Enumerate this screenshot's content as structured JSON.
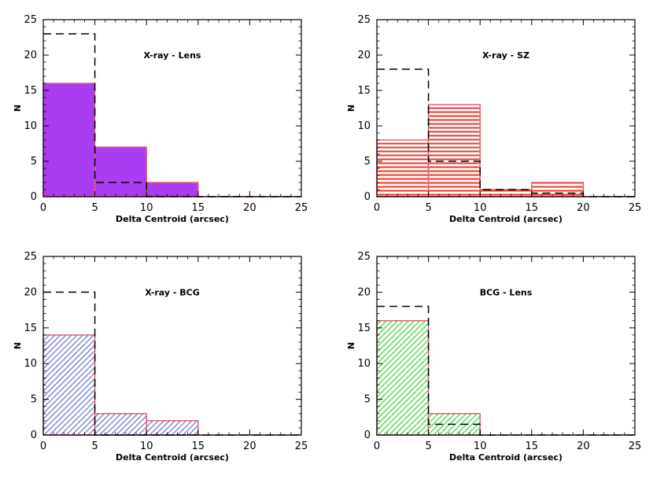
{
  "chart_data": [
    {
      "type": "bar",
      "annotation": "X-ray - Lens",
      "xlabel": "Delta Centroid (arcsec)",
      "ylabel": "N",
      "xlim": [
        0,
        25
      ],
      "ylim": [
        0,
        25
      ],
      "xticks": [
        "0",
        "5",
        "10",
        "15",
        "20",
        "25"
      ],
      "yticks": [
        "0",
        "5",
        "10",
        "15",
        "20",
        "25"
      ],
      "bin_edges": [
        0,
        5,
        10,
        15,
        20,
        25
      ],
      "values": [
        16,
        7,
        2,
        0,
        0
      ],
      "comparison_values": [
        23,
        2,
        0,
        0,
        0
      ],
      "fill_color": "#aa3cf2",
      "fill_style": "solid",
      "edge_color": "#e06070"
    },
    {
      "type": "bar",
      "annotation": "X-ray - SZ",
      "xlabel": "Delta Centroid (arcsec)",
      "ylabel": "N",
      "xlim": [
        0,
        25
      ],
      "ylim": [
        0,
        25
      ],
      "xticks": [
        "0",
        "5",
        "10",
        "15",
        "20",
        "25"
      ],
      "yticks": [
        "0",
        "5",
        "10",
        "15",
        "20",
        "25"
      ],
      "bin_edges": [
        0,
        5,
        10,
        15,
        20,
        25
      ],
      "values": [
        8,
        13,
        1,
        2,
        0
      ],
      "comparison_values": [
        18,
        5,
        1,
        0.5,
        0
      ],
      "fill_color": "#e8392e",
      "fill_style": "horizontal-lines",
      "edge_color": "#e06070"
    },
    {
      "type": "bar",
      "annotation": "X-ray - BCG",
      "xlabel": "Delta Centroid (arcsec)",
      "ylabel": "N",
      "xlim": [
        0,
        25
      ],
      "ylim": [
        0,
        25
      ],
      "xticks": [
        "0",
        "5",
        "10",
        "15",
        "20",
        "25"
      ],
      "yticks": [
        "0",
        "5",
        "10",
        "15",
        "20",
        "25"
      ],
      "bin_edges": [
        0,
        5,
        10,
        15,
        20,
        25
      ],
      "values": [
        14,
        3,
        2,
        0,
        0
      ],
      "comparison_values": [
        20,
        0,
        0,
        0,
        0
      ],
      "fill_color": "#4a55cc",
      "fill_style": "diagonal-lines",
      "edge_color": "#e06070"
    },
    {
      "type": "bar",
      "annotation": "BCG - Lens",
      "xlabel": "Delta Centroid (arcsec)",
      "ylabel": "N",
      "xlim": [
        0,
        25
      ],
      "ylim": [
        0,
        25
      ],
      "xticks": [
        "0",
        "5",
        "10",
        "15",
        "20",
        "25"
      ],
      "yticks": [
        "0",
        "5",
        "10",
        "15",
        "20",
        "25"
      ],
      "bin_edges": [
        0,
        5,
        10,
        15,
        20,
        25
      ],
      "values": [
        16,
        3,
        0,
        0,
        0
      ],
      "comparison_values": [
        18,
        1.5,
        0,
        0,
        0
      ],
      "fill_color": "#2fd42f",
      "fill_style": "diagonal-lines",
      "edge_color": "#e06070"
    }
  ]
}
